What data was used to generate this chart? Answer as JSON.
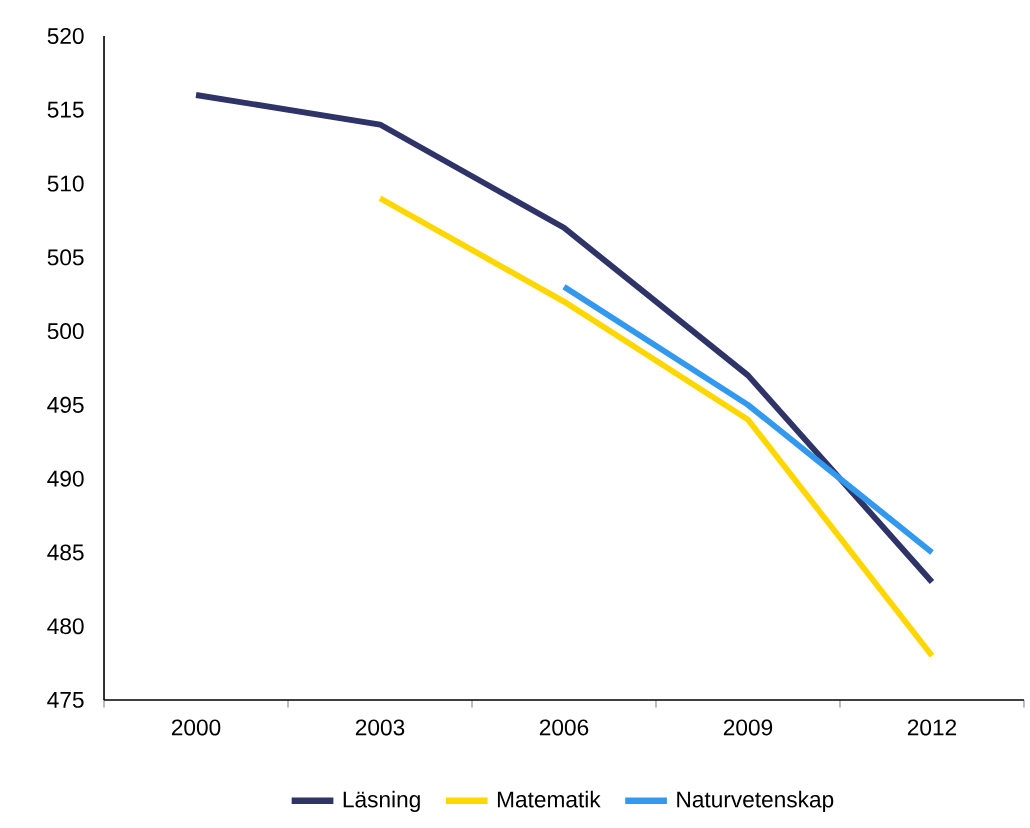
{
  "chart_data": {
    "type": "line",
    "categories": [
      "2000",
      "2003",
      "2006",
      "2009",
      "2012"
    ],
    "series": [
      {
        "name": "Läsning",
        "color": "#2e3368",
        "values": [
          516,
          514,
          507,
          497,
          483
        ]
      },
      {
        "name": "Matematik",
        "color": "#ffd700",
        "values": [
          null,
          509,
          502,
          494,
          478
        ]
      },
      {
        "name": "Naturvetenskap",
        "color": "#3399ee",
        "values": [
          null,
          null,
          503,
          495,
          485
        ]
      }
    ],
    "ylim": [
      475,
      520
    ],
    "yticks": [
      475,
      480,
      485,
      490,
      495,
      500,
      505,
      510,
      515,
      520
    ],
    "legend": "bottom"
  }
}
